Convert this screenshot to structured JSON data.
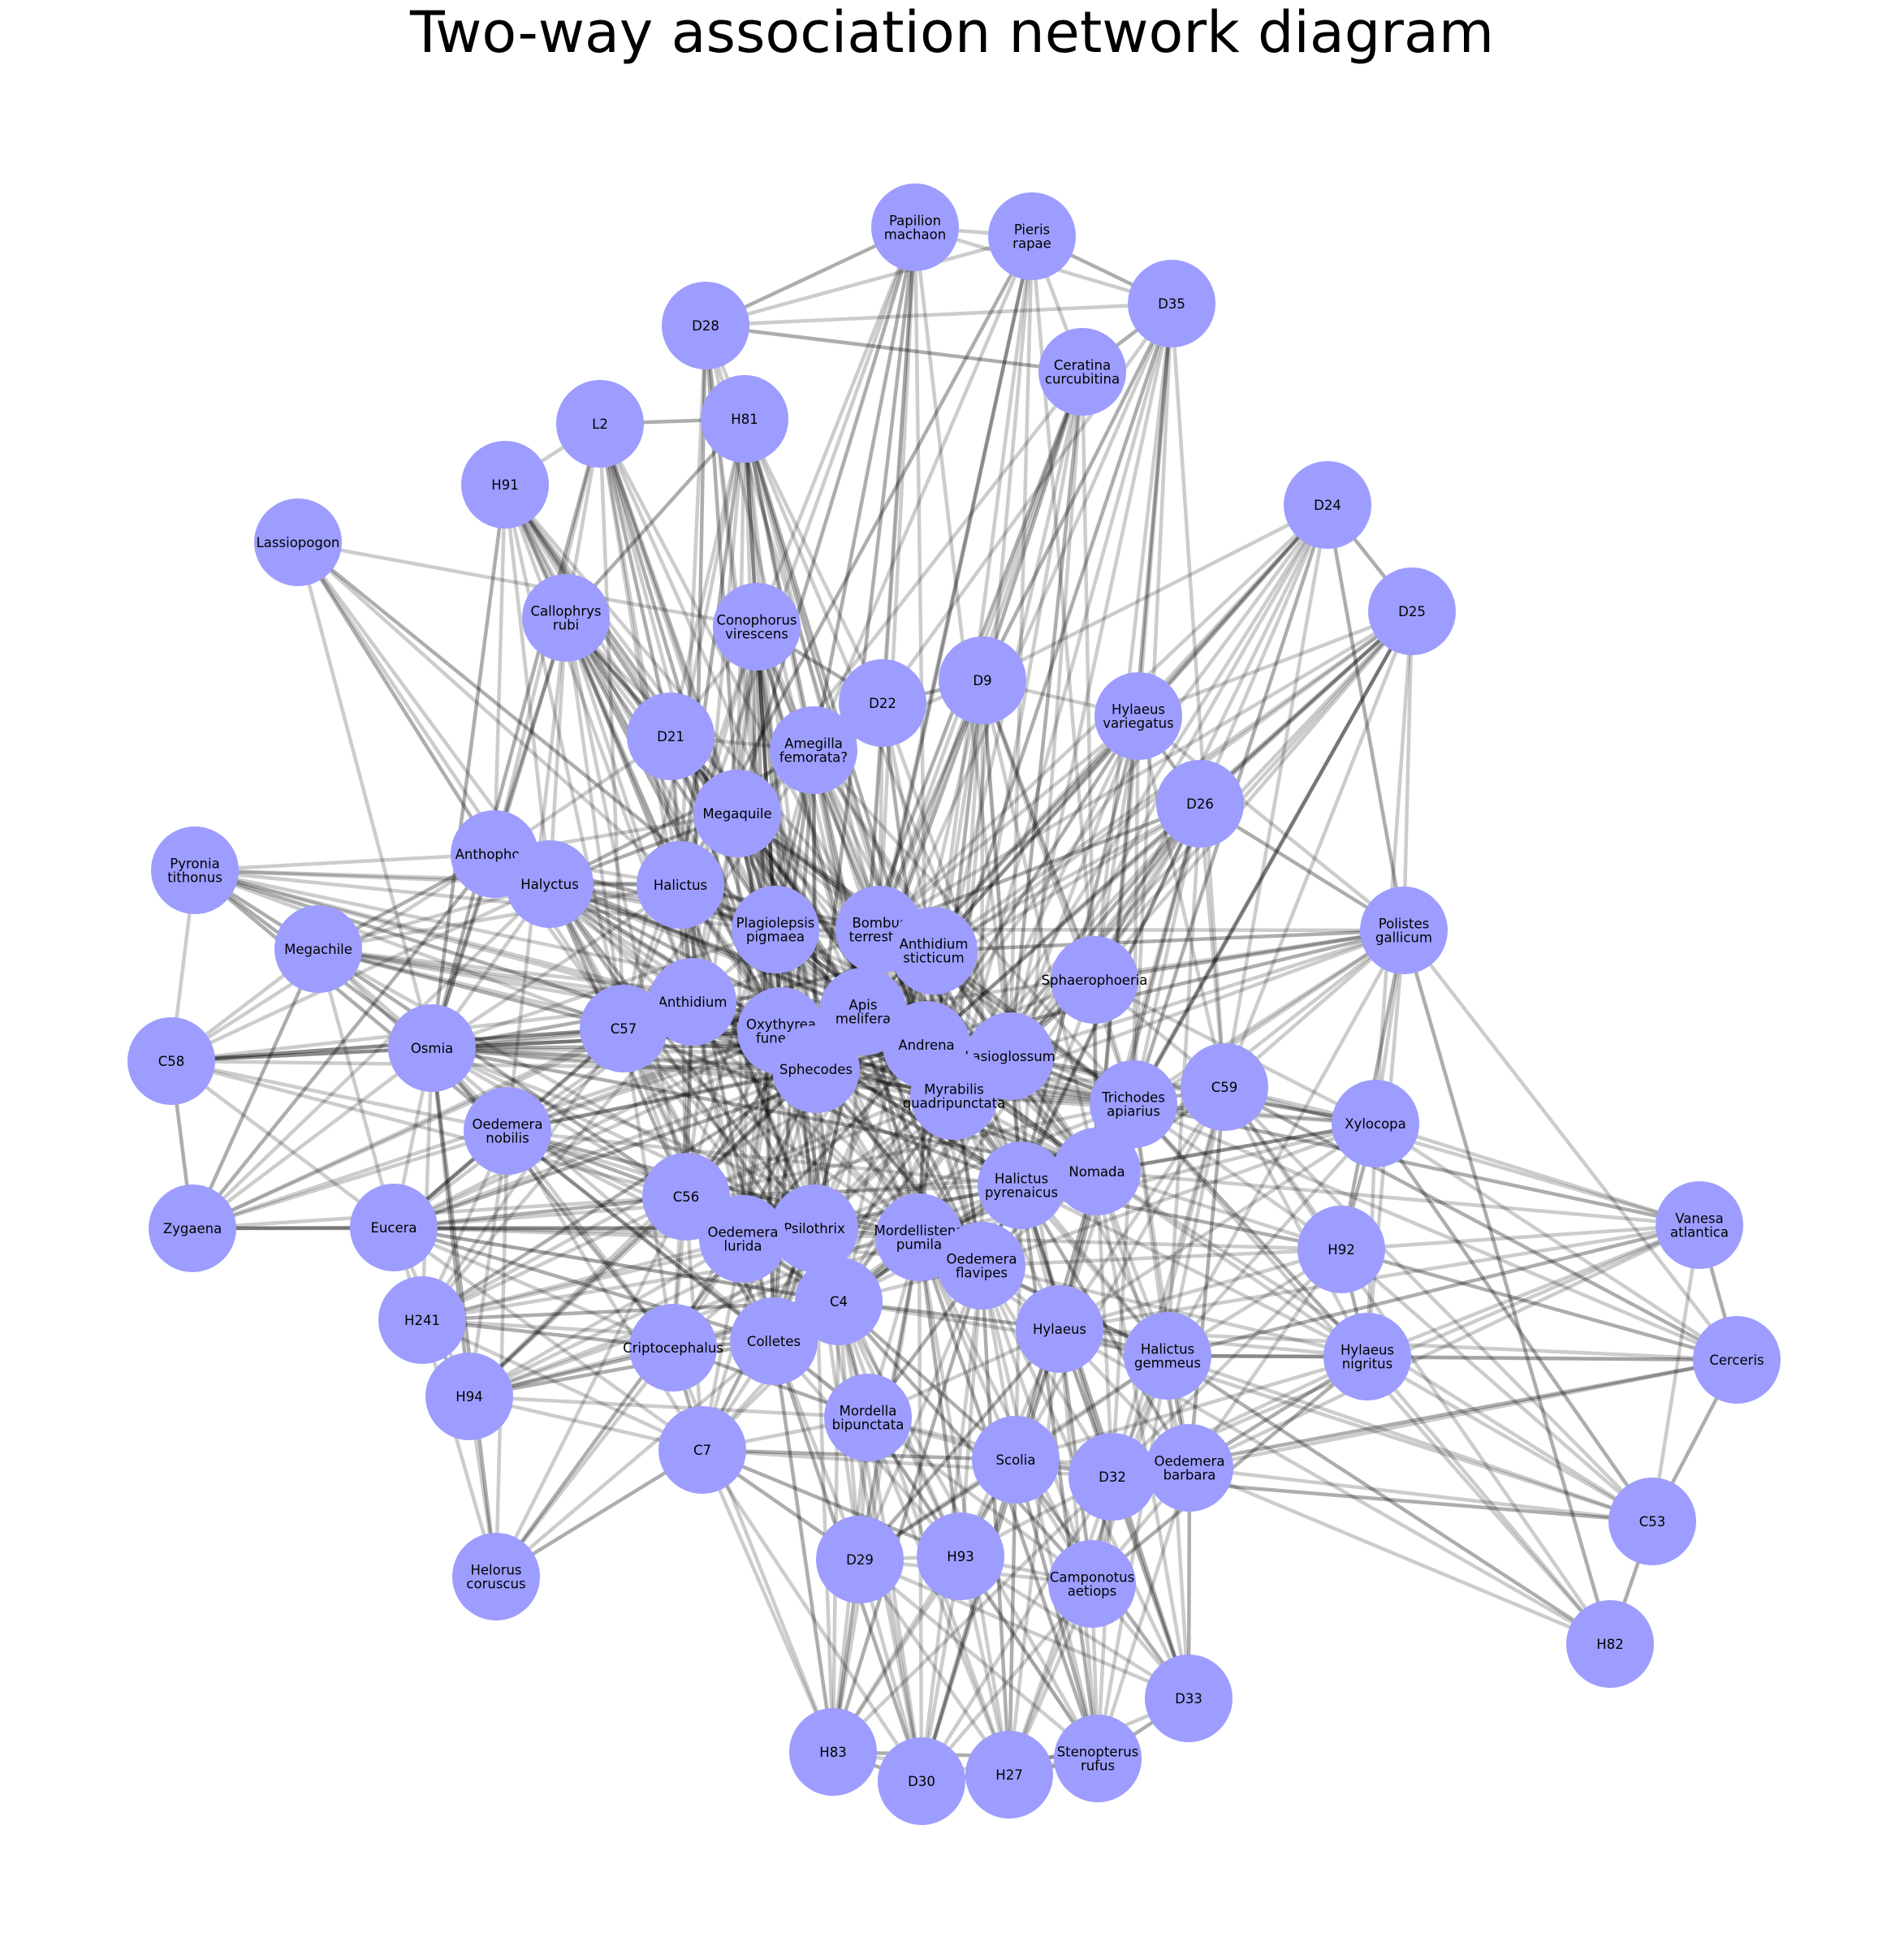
{
  "title": "Two-way association network diagram",
  "node_color": "#9d9dff",
  "edge_color": "#000000",
  "nodes": [
    {
      "id": "papilion",
      "label": "Papilion\nmachaon"
    },
    {
      "id": "pieris",
      "label": "Pieris\nrapae"
    },
    {
      "id": "d35",
      "label": "D35"
    },
    {
      "id": "d28",
      "label": "D28"
    },
    {
      "id": "ceratina",
      "label": "Ceratina\ncurcubitina"
    },
    {
      "id": "l2",
      "label": "L2"
    },
    {
      "id": "h81",
      "label": "H81"
    },
    {
      "id": "h91",
      "label": "H91"
    },
    {
      "id": "d24",
      "label": "D24"
    },
    {
      "id": "lassiopogon",
      "label": "Lassiopogon"
    },
    {
      "id": "d25",
      "label": "D25"
    },
    {
      "id": "callophrys",
      "label": "Callophrys\nrubi"
    },
    {
      "id": "conophorus",
      "label": "Conophorus\nvirescens"
    },
    {
      "id": "d9",
      "label": "D9"
    },
    {
      "id": "d22",
      "label": "D22"
    },
    {
      "id": "hylaeus_var",
      "label": "Hylaeus\nvariegatus"
    },
    {
      "id": "d21",
      "label": "D21"
    },
    {
      "id": "amegilla",
      "label": "Amegilla\nfemorata?"
    },
    {
      "id": "d26",
      "label": "D26"
    },
    {
      "id": "megaquile",
      "label": "Megaquile"
    },
    {
      "id": "pyronia",
      "label": "Pyronia\ntithonus"
    },
    {
      "id": "anthophora",
      "label": "Anthophora"
    },
    {
      "id": "halyctus",
      "label": "Halyctus"
    },
    {
      "id": "halictus",
      "label": "Halictus"
    },
    {
      "id": "polistes",
      "label": "Polistes\ngallicum"
    },
    {
      "id": "plagiolepsis",
      "label": "Plagiolepsis\npigmaea"
    },
    {
      "id": "bombus",
      "label": "Bombus\nterrestris"
    },
    {
      "id": "megachile",
      "label": "Megachile"
    },
    {
      "id": "anthidium_st",
      "label": "Anthidium\nsticticum"
    },
    {
      "id": "sphaerophoeria",
      "label": "Sphaerophoeria"
    },
    {
      "id": "anthidium",
      "label": "Anthidium"
    },
    {
      "id": "apis",
      "label": "Apis\nmelifera"
    },
    {
      "id": "c58",
      "label": "C58"
    },
    {
      "id": "c57",
      "label": "C57"
    },
    {
      "id": "osmia",
      "label": "Osmia"
    },
    {
      "id": "oxythyrea",
      "label": "Oxythyrea\nfunesta"
    },
    {
      "id": "andrena",
      "label": "Andrena"
    },
    {
      "id": "lasioglossum",
      "label": "Lasioglossum"
    },
    {
      "id": "sphecodes",
      "label": "Sphecodes"
    },
    {
      "id": "c59",
      "label": "C59"
    },
    {
      "id": "myrabilis",
      "label": "Myrabilis\nquadripunctata"
    },
    {
      "id": "trichodes",
      "label": "Trichodes\napiarius"
    },
    {
      "id": "xylocopa",
      "label": "Xylocopa"
    },
    {
      "id": "oedemera_nob",
      "label": "Oedemera\nnobilis"
    },
    {
      "id": "nomada",
      "label": "Nomada"
    },
    {
      "id": "halictus_pyr",
      "label": "Halictus\npyrenaicus"
    },
    {
      "id": "c56",
      "label": "C56"
    },
    {
      "id": "zygaena",
      "label": "Zygaena"
    },
    {
      "id": "eucera",
      "label": "Eucera"
    },
    {
      "id": "vanesa",
      "label": "Vanesa\natlantica"
    },
    {
      "id": "psilothrix",
      "label": "Psilothrix"
    },
    {
      "id": "mordellistena",
      "label": "Mordellistena\npumila"
    },
    {
      "id": "oedemera_lur",
      "label": "Oedemera\nlurida"
    },
    {
      "id": "h92",
      "label": "H92"
    },
    {
      "id": "oedemera_fla",
      "label": "Oedemera\nflavipes"
    },
    {
      "id": "c4",
      "label": "C4"
    },
    {
      "id": "h241",
      "label": "H241"
    },
    {
      "id": "hylaeus",
      "label": "Hylaeus"
    },
    {
      "id": "criptocephalus",
      "label": "Criptocephalus"
    },
    {
      "id": "colletes",
      "label": "Colletes"
    },
    {
      "id": "halictus_gem",
      "label": "Halictus\ngemmeus"
    },
    {
      "id": "hylaeus_nig",
      "label": "Hylaeus\nnigritus"
    },
    {
      "id": "cerceris",
      "label": "Cerceris"
    },
    {
      "id": "h94",
      "label": "H94"
    },
    {
      "id": "mordella",
      "label": "Mordella\nbipunctata"
    },
    {
      "id": "c7",
      "label": "C7"
    },
    {
      "id": "scolia",
      "label": "Scolia"
    },
    {
      "id": "d32",
      "label": "D32"
    },
    {
      "id": "oedemera_bar",
      "label": "Oedemera\nbarbara"
    },
    {
      "id": "c53",
      "label": "C53"
    },
    {
      "id": "helorus",
      "label": "Helorus\ncoruscus"
    },
    {
      "id": "h93",
      "label": "H93"
    },
    {
      "id": "d29",
      "label": "D29"
    },
    {
      "id": "camponotus",
      "label": "Camponotus\naetiops"
    },
    {
      "id": "h82",
      "label": "H82"
    },
    {
      "id": "d33",
      "label": "D33"
    },
    {
      "id": "h83",
      "label": "H83"
    },
    {
      "id": "stenopterus",
      "label": "Stenopterus\nrufus"
    },
    {
      "id": "h27",
      "label": "H27"
    },
    {
      "id": "d30",
      "label": "D30"
    }
  ]
}
